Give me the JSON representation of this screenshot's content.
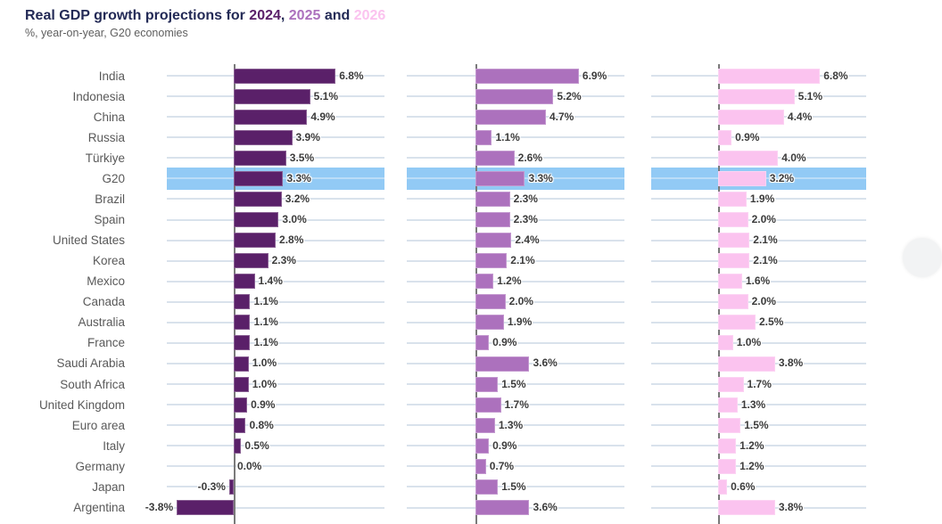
{
  "title": {
    "prefix": "Real GDP growth projections for ",
    "year1": "2024",
    "sep1": ", ",
    "year2": "2025",
    "sep2": " and ",
    "year3": "2026",
    "subtitle": "%, year-on-year, G20 economies"
  },
  "colors": {
    "accent_2024": "#5A2069",
    "accent_2025": "#AC71BD",
    "accent_2026": "#FBC3EF",
    "title_text": "#232A56",
    "subtitle_text": "#5E5E5E",
    "country_label": "#595959",
    "value_label": "#3B3B3B",
    "highlight_band": "#92CAF5",
    "gridline": "#D9E2EC",
    "axis_line": "#7A7A7A"
  },
  "chart_data": {
    "type": "bar",
    "orientation": "horizontal",
    "title": "Real GDP growth projections for 2024, 2025 and 2026",
    "subtitle": "%, year-on-year, G20 economies",
    "unit": "%",
    "grid": true,
    "legend_position": "in-title",
    "xlim": [
      -4.5,
      10
    ],
    "highlight_category": "G20",
    "categories": [
      "India",
      "Indonesia",
      "China",
      "Russia",
      "Türkiye",
      "G20",
      "Brazil",
      "Spain",
      "United States",
      "Korea",
      "Mexico",
      "Canada",
      "Australia",
      "France",
      "Saudi Arabia",
      "South Africa",
      "United Kingdom",
      "Euro area",
      "Italy",
      "Germany",
      "Japan",
      "Argentina"
    ],
    "series": [
      {
        "name": "2024",
        "color": "#5A2069",
        "values": [
          6.8,
          5.1,
          4.9,
          3.9,
          3.5,
          3.3,
          3.2,
          3.0,
          2.8,
          2.3,
          1.4,
          1.1,
          1.1,
          1.1,
          1.0,
          1.0,
          0.9,
          0.8,
          0.5,
          0.0,
          -0.3,
          -3.8
        ]
      },
      {
        "name": "2025",
        "color": "#AC71BD",
        "values": [
          6.9,
          5.2,
          4.7,
          1.1,
          2.6,
          3.3,
          2.3,
          2.3,
          2.4,
          2.1,
          1.2,
          2.0,
          1.9,
          0.9,
          3.6,
          1.5,
          1.7,
          1.3,
          0.9,
          0.7,
          1.5,
          3.6
        ]
      },
      {
        "name": "2026",
        "color": "#FBC3EF",
        "values": [
          6.8,
          5.1,
          4.4,
          0.9,
          4.0,
          3.2,
          1.9,
          2.0,
          2.1,
          2.1,
          1.6,
          2.0,
          2.5,
          1.0,
          3.8,
          1.7,
          1.3,
          1.5,
          1.2,
          1.2,
          0.6,
          3.8
        ]
      }
    ]
  }
}
